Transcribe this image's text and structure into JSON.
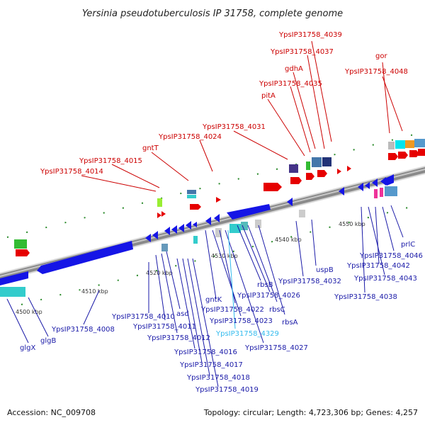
{
  "title": "Yersinia pseudotuberculosis IP 31758, complete genome",
  "footer": {
    "accession": "Accession: NC_009708",
    "stats": "Topology: circular; Length: 4,723,306 bp; Genes: 4,257"
  },
  "colors": {
    "forward": "#e60000",
    "reverse": "#1515e6",
    "top_label": "#cc0000",
    "bottom_label": "#1a1aa8",
    "highlight_label": "#33bbee",
    "backbone": "#8a8a8a"
  },
  "scale_ticks": [
    "4500 kbp",
    "4510 kbp",
    "4520 kbp",
    "4530 kbp",
    "4540 kbp",
    "4550 kbp"
  ],
  "top_genes": [
    "YpsIP31758_4039",
    "YpsIP31758_4037",
    "gor",
    "gdhA",
    "YpsIP31758_4048",
    "YpsIP31758_4035",
    "pitA",
    "YpsIP31758_4031",
    "YpsIP31758_4024",
    "gntT",
    "YpsIP31758_4015",
    "YpsIP31758_4014"
  ],
  "bottom_genes": [
    "prlC",
    "YpsIP31758_4046",
    "YpsIP31758_4042",
    "YpsIP31758_4043",
    "YpsIP31758_4038",
    "uspB",
    "YpsIP31758_4032",
    "rbsB",
    "YpsIP31758_4026",
    "rbsC",
    "rbsA",
    "YpsIP31758_4022",
    "gntK",
    "YpsIP31758_4023",
    "YpsIP31758_4329",
    "YpsIP31758_4027",
    "asd",
    "YpsIP31758_4010",
    "YpsIP31758_4011",
    "YpsIP31758_4012",
    "YpsIP31758_4008",
    "YpsIP31758_4016",
    "YpsIP31758_4017",
    "YpsIP31758_4018",
    "YpsIP31758_4019",
    "glgB",
    "glgX"
  ]
}
